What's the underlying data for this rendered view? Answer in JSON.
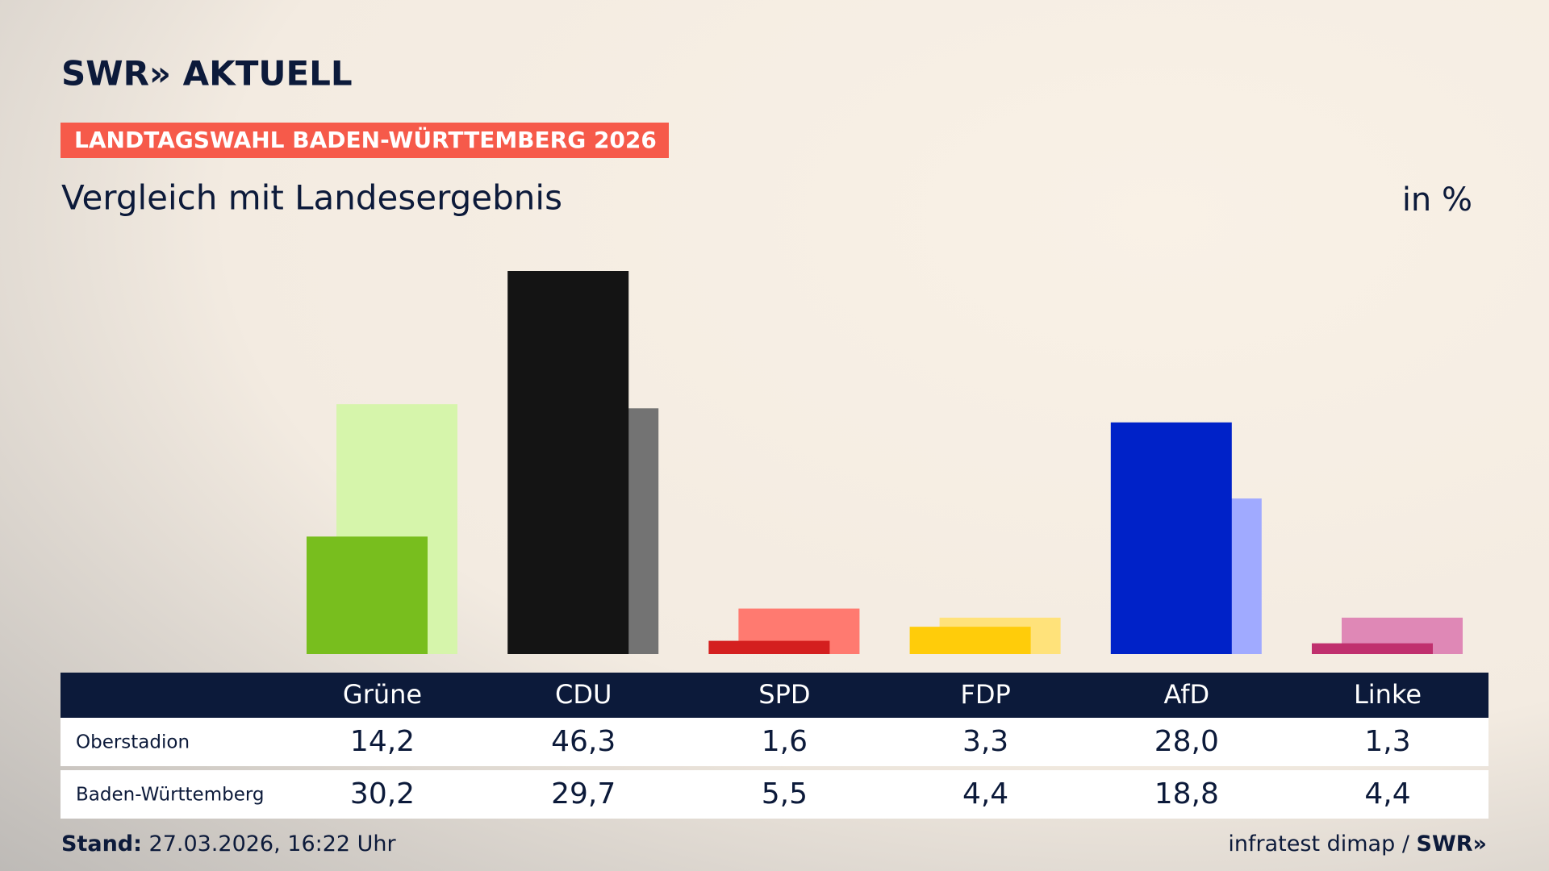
{
  "chart_data": {
    "type": "bar",
    "brand": "SWR» AKTUELL",
    "kicker": "LANDTAGSWAHL BADEN-WÜRTTEMBERG 2026",
    "title": "Vergleich mit Landesergebnis",
    "unit": "in %",
    "categories": [
      "Grüne",
      "CDU",
      "SPD",
      "FDP",
      "AfD",
      "Linke"
    ],
    "series": [
      {
        "name": "Oberstadion",
        "values": [
          14.2,
          46.3,
          1.6,
          3.3,
          28.0,
          1.3
        ],
        "value_labels": [
          "14,2",
          "46,3",
          "1,6",
          "3,3",
          "28,0",
          "1,3"
        ],
        "colors": [
          "#78be1e",
          "#141414",
          "#d41f1f",
          "#ffcc0a",
          "#0022c8",
          "#c0306e"
        ]
      },
      {
        "name": "Baden-Württemberg",
        "values": [
          30.2,
          29.7,
          5.5,
          4.4,
          18.8,
          4.4
        ],
        "value_labels": [
          "30,2",
          "29,7",
          "5,5",
          "4,4",
          "18,8",
          "4,4"
        ],
        "colors": [
          "#d6f5ab",
          "#737373",
          "#ff7a70",
          "#ffe27a",
          "#a0aaff",
          "#df88b6"
        ]
      }
    ],
    "footer_label": "Stand:",
    "footer_date": "27.03.2026, 16:22 Uhr",
    "source": "infratest dimap /",
    "source_brand": "SWR»"
  }
}
